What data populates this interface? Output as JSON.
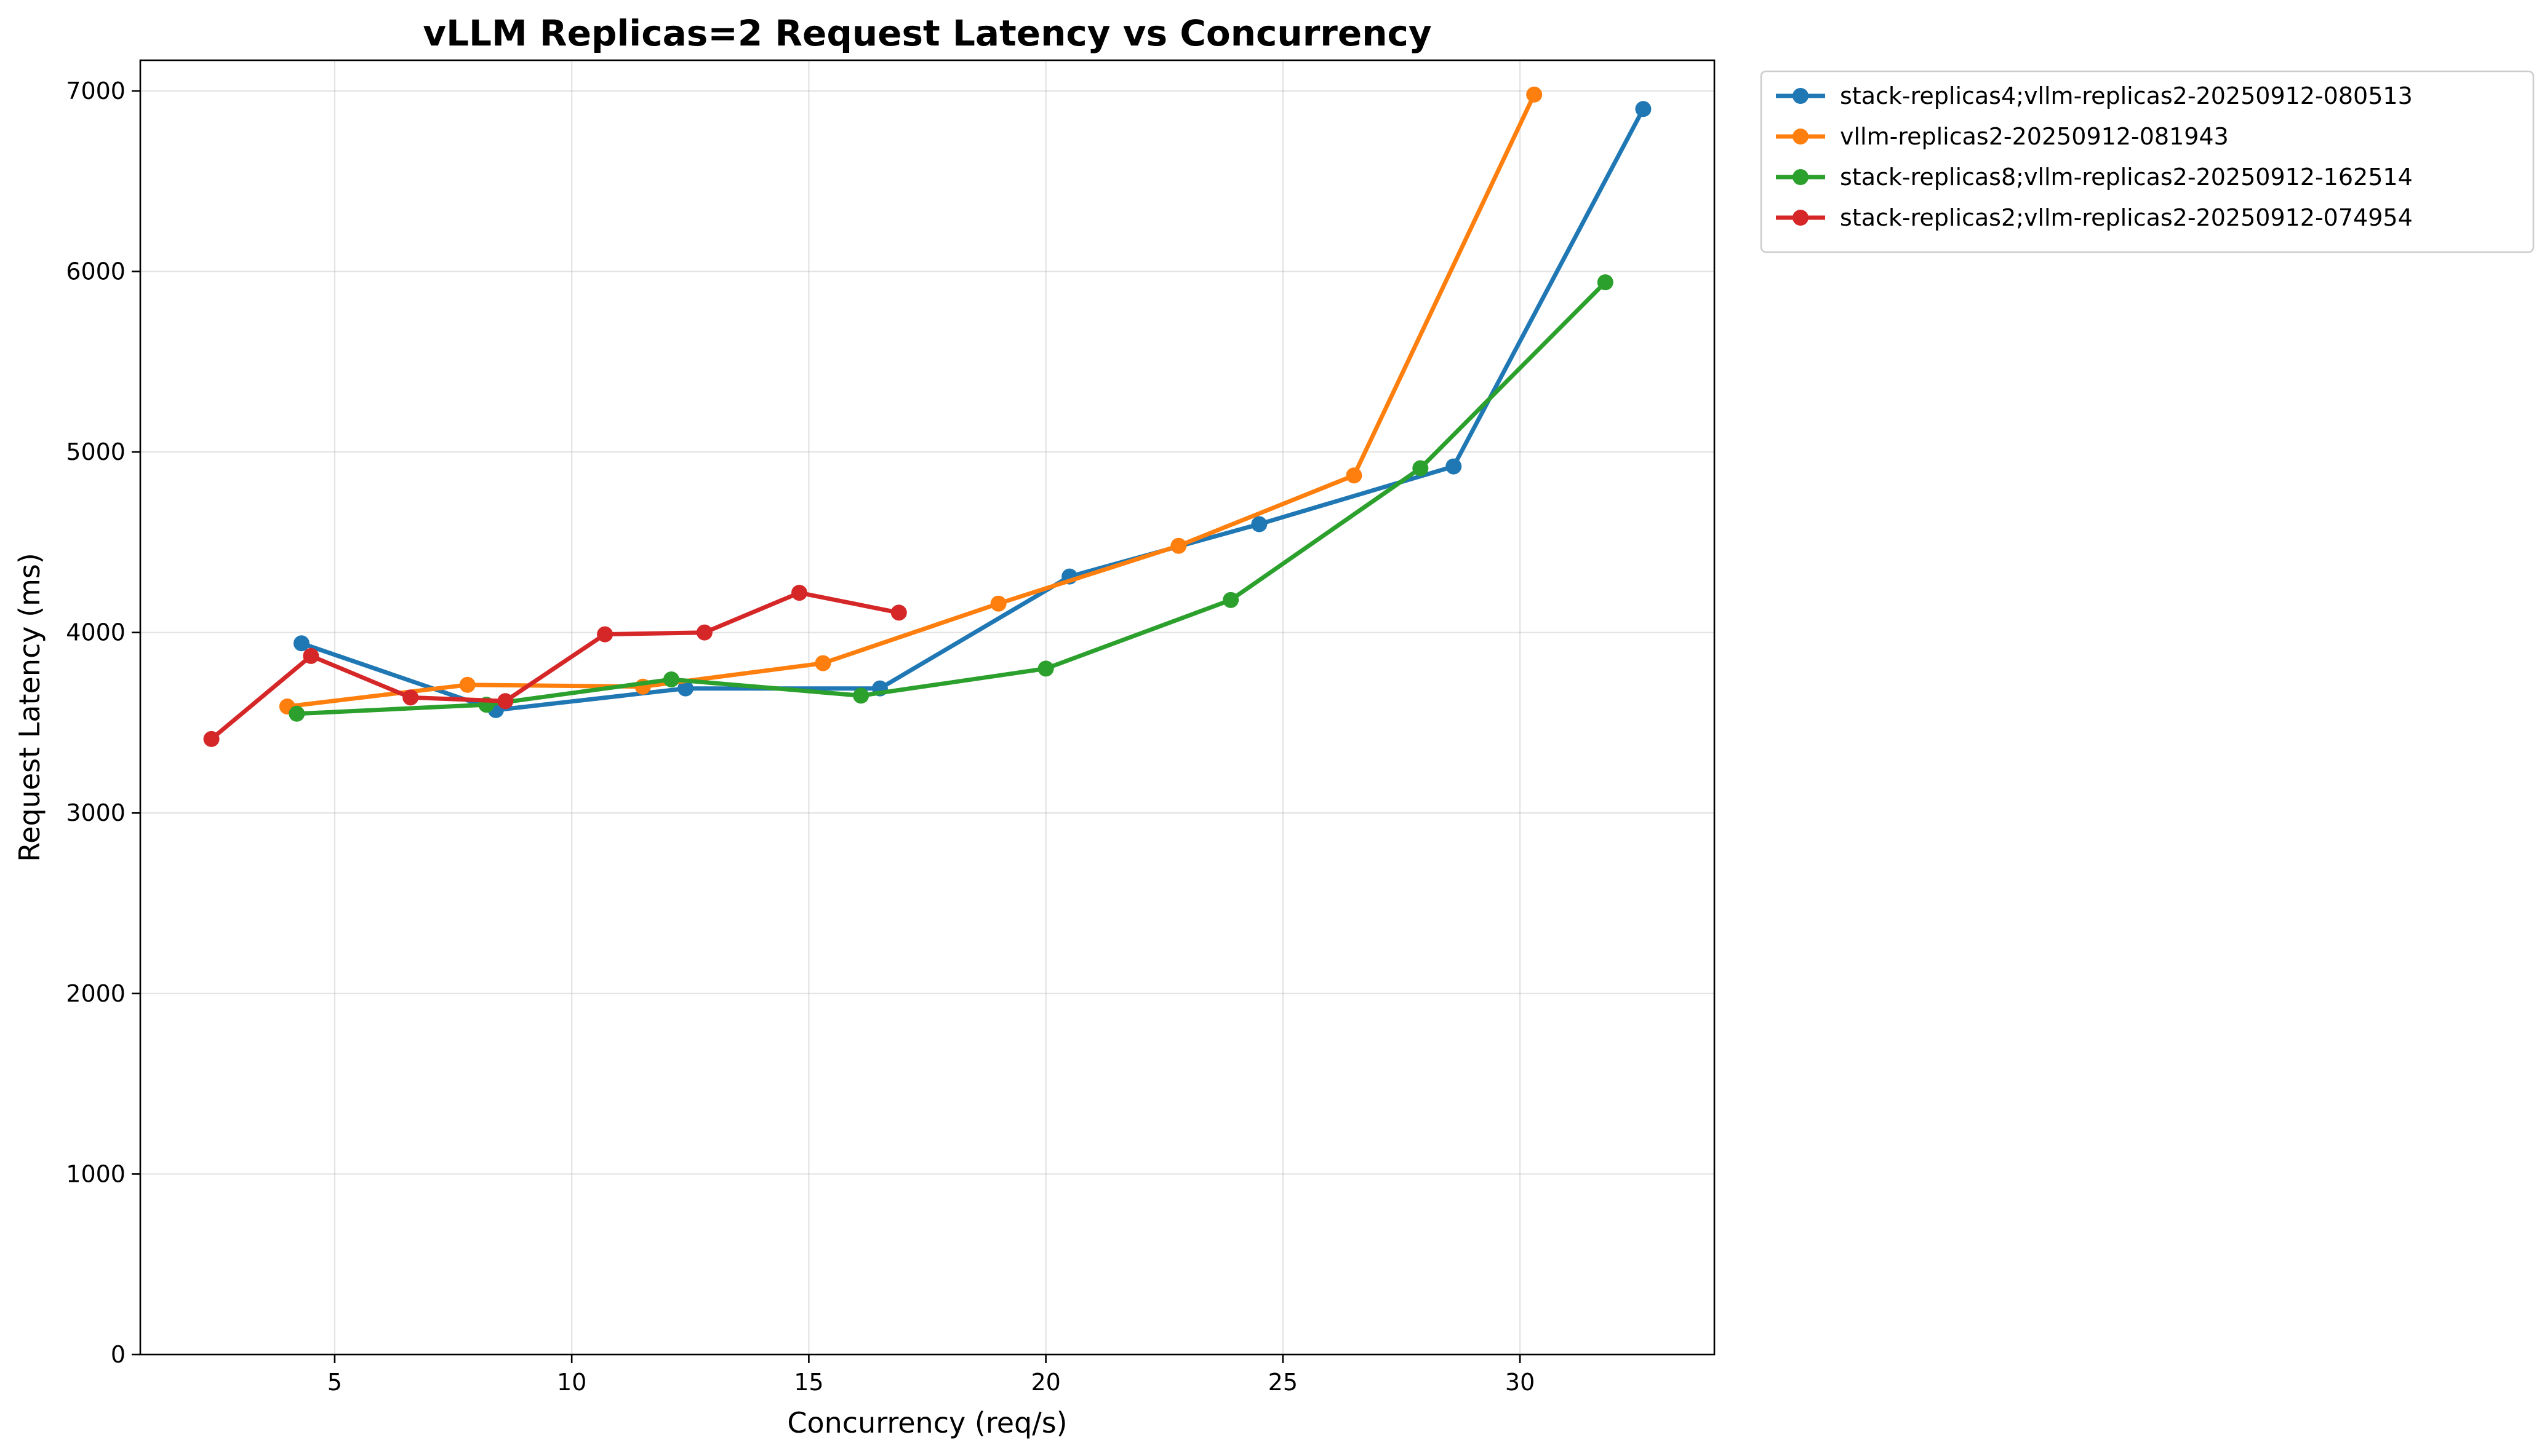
{
  "chart_data": {
    "type": "line",
    "title": "vLLM Replicas=2 Request Latency vs Concurrency",
    "xlabel": "Concurrency (req/s)",
    "ylabel": "Request Latency (ms)",
    "xlim": [
      0.9,
      34.1
    ],
    "ylim": [
      0,
      7170
    ],
    "xticks": [
      5,
      10,
      15,
      20,
      25,
      30
    ],
    "yticks": [
      0,
      1000,
      2000,
      3000,
      4000,
      5000,
      6000,
      7000
    ],
    "grid": true,
    "legend_position": "outside-top-right",
    "series": [
      {
        "name": "stack-replicas4;vllm-replicas2-20250912-080513",
        "color": "#1f77b4",
        "x": [
          4.3,
          8.4,
          12.4,
          16.5,
          20.5,
          24.5,
          28.6,
          32.6
        ],
        "y": [
          3940,
          3570,
          3690,
          3690,
          4310,
          4600,
          4920,
          6900
        ]
      },
      {
        "name": "vllm-replicas2-20250912-081943",
        "color": "#ff7f0e",
        "x": [
          4.0,
          7.8,
          11.5,
          15.3,
          19.0,
          22.8,
          26.5,
          30.3
        ],
        "y": [
          3590,
          3710,
          3700,
          3830,
          4160,
          4480,
          4870,
          6980
        ]
      },
      {
        "name": "stack-replicas8;vllm-replicas2-20250912-162514",
        "color": "#2ca02c",
        "x": [
          4.2,
          8.2,
          12.1,
          16.1,
          20.0,
          23.9,
          27.9,
          31.8
        ],
        "y": [
          3550,
          3600,
          3740,
          3650,
          3800,
          4180,
          4910,
          5940
        ]
      },
      {
        "name": "stack-replicas2;vllm-replicas2-20250912-074954",
        "color": "#d62728",
        "x": [
          2.4,
          4.5,
          6.6,
          8.6,
          10.7,
          12.8,
          14.8,
          16.9
        ],
        "y": [
          3410,
          3870,
          3640,
          3620,
          3990,
          4000,
          4220,
          4110
        ]
      }
    ]
  }
}
